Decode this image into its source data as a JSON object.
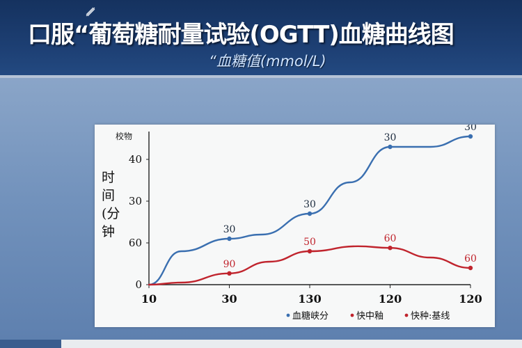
{
  "header": {
    "title": "口服“葡萄糖耐量试验(OGTT)血糖曲线图",
    "subtitle": "“血糖值(mmol/L)"
  },
  "colors": {
    "header_bg": "#1d3f73",
    "page_bg": "#7292bc",
    "blue_series": "#3a6fb0",
    "red_series": "#c0242d",
    "card_bg": "#f7f8f8"
  },
  "chart_data": {
    "type": "line",
    "corner_label": "校物",
    "ylabel": "时间(分钟",
    "ylabel_lines": [
      "时",
      "间",
      "(分",
      "钟"
    ],
    "y_ticks": [
      {
        "label": "0",
        "value": 0
      },
      {
        "label": "60",
        "value": 1
      },
      {
        "label": "30",
        "value": 2
      },
      {
        "label": "40",
        "value": 3
      }
    ],
    "x_ticks": [
      "10",
      "30",
      "130",
      "120",
      "120"
    ],
    "ylim": [
      0,
      3.6
    ],
    "grid": false,
    "legend_position": "bottom-right",
    "series": [
      {
        "name": "血糖峡分",
        "color": "#3a6fb0",
        "points": [
          {
            "x": 0,
            "y": 0
          },
          {
            "x": 0.4,
            "y": 0.8
          },
          {
            "x": 1,
            "y": 1.1
          },
          {
            "x": 1.4,
            "y": 1.2
          },
          {
            "x": 2,
            "y": 1.7
          },
          {
            "x": 2.5,
            "y": 2.45
          },
          {
            "x": 3,
            "y": 3.3
          },
          {
            "x": 3.5,
            "y": 3.3
          },
          {
            "x": 4,
            "y": 3.55
          }
        ],
        "labels": [
          {
            "x": 1,
            "y": 1.1,
            "text": "30"
          },
          {
            "x": 2,
            "y": 1.7,
            "text": "30"
          },
          {
            "x": 3,
            "y": 3.3,
            "text": "30"
          },
          {
            "x": 4,
            "y": 3.55,
            "text": "30"
          }
        ]
      },
      {
        "name": "快中釉",
        "color": "#c0242d",
        "points": [
          {
            "x": 0,
            "y": 0
          },
          {
            "x": 0.4,
            "y": 0.05
          },
          {
            "x": 1,
            "y": 0.27
          },
          {
            "x": 1.5,
            "y": 0.55
          },
          {
            "x": 2,
            "y": 0.8
          },
          {
            "x": 2.6,
            "y": 0.92
          },
          {
            "x": 3,
            "y": 0.88
          },
          {
            "x": 3.5,
            "y": 0.65
          },
          {
            "x": 4,
            "y": 0.4
          }
        ],
        "labels": [
          {
            "x": 1,
            "y": 0.27,
            "text": "90"
          },
          {
            "x": 2,
            "y": 0.8,
            "text": "50"
          },
          {
            "x": 3,
            "y": 0.88,
            "text": "60"
          },
          {
            "x": 4,
            "y": 0.4,
            "text": "60"
          }
        ]
      }
    ],
    "legend": [
      {
        "text": "血糖峡分",
        "color": "#3a6fb0"
      },
      {
        "text": "快中釉",
        "color": "#c0242d"
      },
      {
        "text": "快种:基线",
        "color": "#c0242d"
      }
    ]
  }
}
